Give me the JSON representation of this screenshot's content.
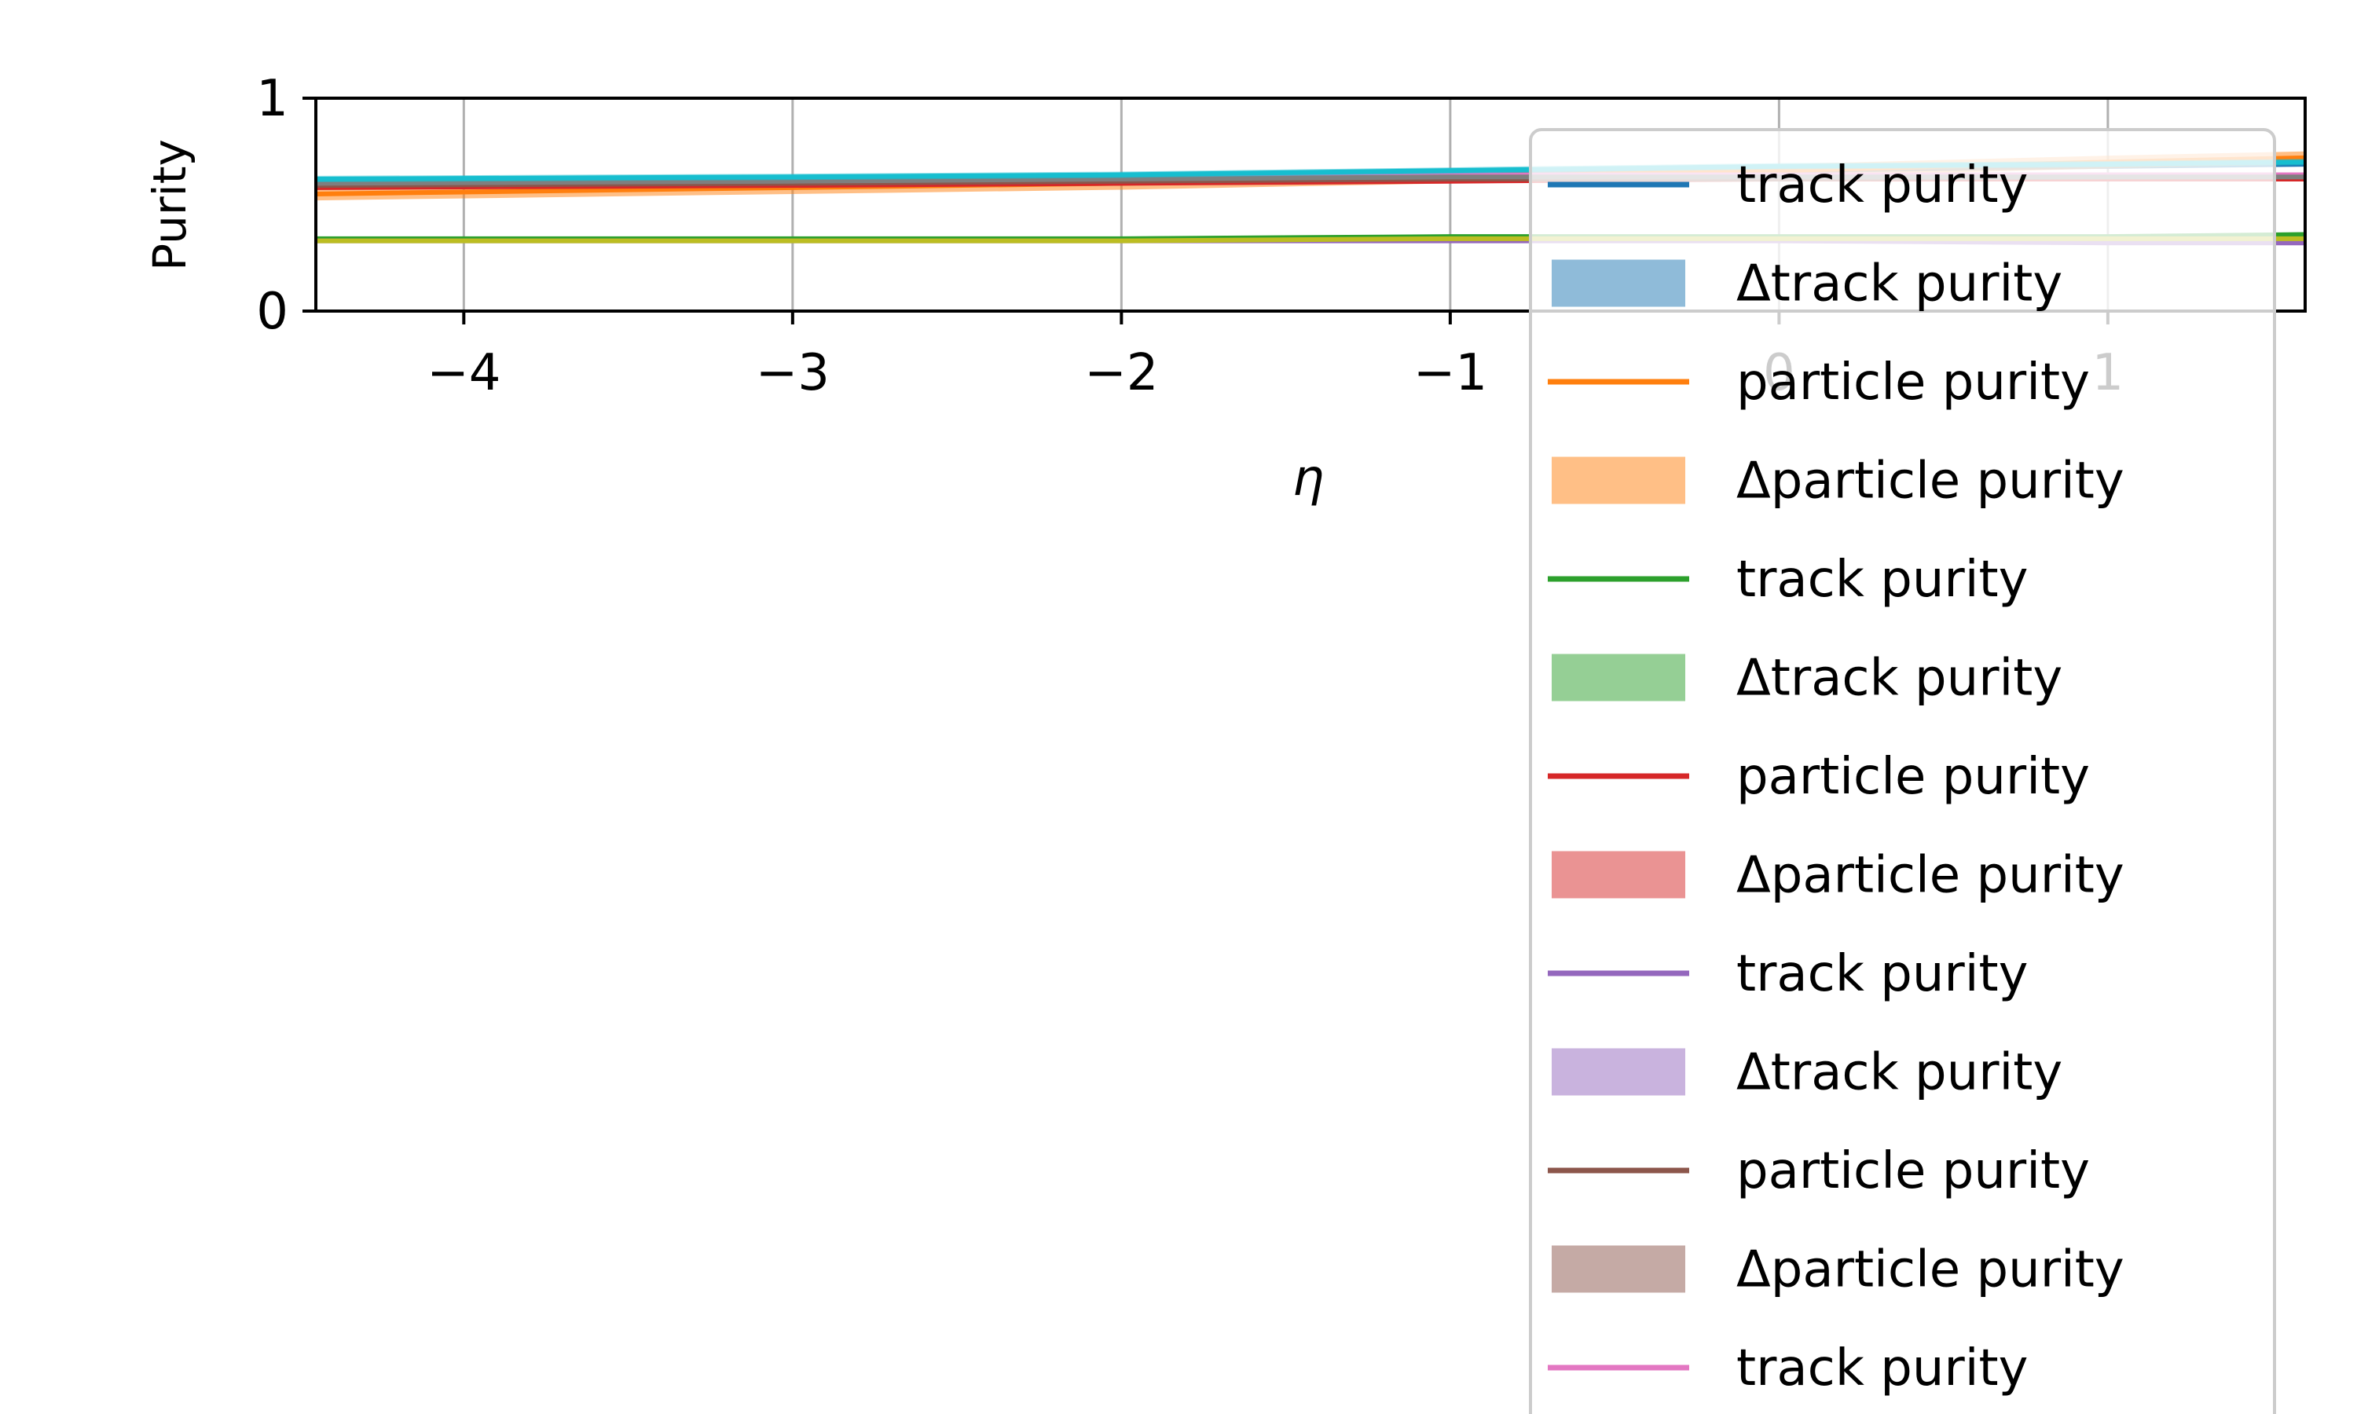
{
  "chart_data": {
    "type": "line",
    "title": "",
    "xlabel": "η",
    "ylabel": "Purity",
    "xlim": [
      -4.45,
      1.6
    ],
    "ylim": [
      0,
      1
    ],
    "x_ticks": [
      "−4",
      "−3",
      "−2",
      "−1",
      "0",
      "1"
    ],
    "x_tick_values": [
      -4,
      -3,
      -2,
      -1,
      0,
      1
    ],
    "y_ticks": [
      "0",
      "1"
    ],
    "y_tick_values": [
      0,
      1
    ],
    "grid": "x",
    "legend_placement": "right, overlapping plot and extending past bottom",
    "x": [
      -4.45,
      -3,
      -2,
      -1,
      0,
      1,
      1.6
    ],
    "series": [
      {
        "name": "track purity",
        "color": "#1f77b4",
        "values": [
          0.6,
          0.61,
          0.62,
          0.64,
          0.66,
          0.68,
          0.69
        ],
        "band": 0.012
      },
      {
        "name": "particle purity",
        "color": "#ff7f0e",
        "values": [
          0.55,
          0.58,
          0.6,
          0.63,
          0.66,
          0.7,
          0.72
        ],
        "band": 0.03
      },
      {
        "name": "track purity",
        "color": "#2ca02c",
        "values": [
          0.34,
          0.34,
          0.34,
          0.35,
          0.35,
          0.35,
          0.36
        ],
        "band": 0.01
      },
      {
        "name": "particle purity",
        "color": "#d62728",
        "values": [
          0.58,
          0.59,
          0.6,
          0.61,
          0.62,
          0.62,
          0.62
        ],
        "band": 0.01
      },
      {
        "name": "track purity",
        "color": "#9467bd",
        "values": [
          0.33,
          0.33,
          0.33,
          0.33,
          0.33,
          0.32,
          0.32
        ],
        "band": 0.008
      },
      {
        "name": "particle purity",
        "color": "#8c564b",
        "values": [
          0.59,
          0.6,
          0.61,
          0.62,
          0.62,
          0.63,
          0.63
        ],
        "band": 0.01
      },
      {
        "name": "track purity",
        "color": "#e377c2",
        "values": [
          0.61,
          0.62,
          0.63,
          0.64,
          0.64,
          0.64,
          0.64
        ],
        "band": 0.01
      },
      {
        "name": "particle purity",
        "color": "#7f7f7f",
        "values": [
          0.6,
          0.61,
          0.62,
          0.63,
          0.63,
          0.63,
          0.63
        ],
        "band": 0.01
      },
      {
        "name": "track purity",
        "color": "#bcbd22",
        "values": [
          0.33,
          0.33,
          0.33,
          0.34,
          0.34,
          0.34,
          0.34
        ],
        "band": 0.01
      },
      {
        "name": "particle purity",
        "color": "#17becf",
        "values": [
          0.62,
          0.63,
          0.64,
          0.66,
          0.68,
          0.69,
          0.7
        ],
        "band": 0.015
      }
    ],
    "legend_entries": [
      {
        "label": "track purity",
        "kind": "line",
        "color": "#1f77b4"
      },
      {
        "label": "Δtrack purity",
        "kind": "patch",
        "color": "#1f77b4"
      },
      {
        "label": "particle purity",
        "kind": "line",
        "color": "#ff7f0e"
      },
      {
        "label": "Δparticle purity",
        "kind": "patch",
        "color": "#ff7f0e"
      },
      {
        "label": "track purity",
        "kind": "line",
        "color": "#2ca02c"
      },
      {
        "label": "Δtrack purity",
        "kind": "patch",
        "color": "#2ca02c"
      },
      {
        "label": "particle purity",
        "kind": "line",
        "color": "#d62728"
      },
      {
        "label": "Δparticle purity",
        "kind": "patch",
        "color": "#d62728"
      },
      {
        "label": "track purity",
        "kind": "line",
        "color": "#9467bd"
      },
      {
        "label": "Δtrack purity",
        "kind": "patch",
        "color": "#9467bd"
      },
      {
        "label": "particle purity",
        "kind": "line",
        "color": "#8c564b"
      },
      {
        "label": "Δparticle purity",
        "kind": "patch",
        "color": "#8c564b"
      },
      {
        "label": "track purity",
        "kind": "line",
        "color": "#e377c2"
      }
    ]
  }
}
